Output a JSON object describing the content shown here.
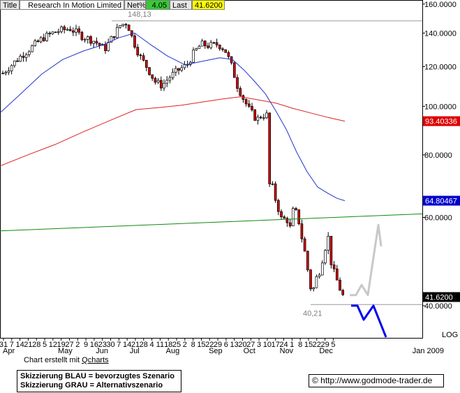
{
  "header": {
    "title_label": "Title",
    "title_value": "Research In Motion Limited",
    "netpct_label": "Net%",
    "netpct_value": "4.05",
    "last_label": "Last",
    "last_value": "41.6200"
  },
  "credit": {
    "prefix": "Chart erstellt mit ",
    "link": "Qcharts"
  },
  "legend_box": {
    "line1": "Skizzierung BLAU = bevorzugtes Szenario",
    "line2": "Skizzierung GRAU = Alternativszenario"
  },
  "copyright": "© http://www.godmode-trader.de",
  "colors": {
    "up_candle": "#ffffff",
    "down_candle": "#cc0000",
    "ma_blue": "#2233cc",
    "ma_red": "#dd2222",
    "trend_green": "#118811",
    "scenario_blue": "#0000ee",
    "scenario_gray": "#c8c8c8",
    "netpct_bg": "#33cc33",
    "last_bg": "#ffff00",
    "tag_red": "#dd0000",
    "tag_blue": "#0000cc",
    "tag_black": "#000000"
  },
  "chart_data": {
    "type": "candlestick",
    "scale": "log",
    "ylim": [
      34.5,
      163
    ],
    "y_ticks": [
      {
        "value": 160,
        "label": "160.0000"
      },
      {
        "value": 140,
        "label": "140.0000"
      },
      {
        "value": 120,
        "label": "120.0000"
      },
      {
        "value": 100,
        "label": "100.0000"
      },
      {
        "value": 80,
        "label": "80.0000"
      },
      {
        "value": 60,
        "label": "60.0000"
      },
      {
        "value": 40,
        "label": "40.0000"
      }
    ],
    "y_axis_note": "LOG",
    "x_day_ticks": [
      "31",
      "7",
      "14",
      "21",
      "28",
      "5",
      "12",
      "19",
      "27",
      "2",
      "9",
      "16",
      "23",
      "30",
      "7",
      "14",
      "21",
      "28",
      "4",
      "11",
      "18",
      "25",
      "2",
      "8",
      "15",
      "22",
      "29",
      "6",
      "13",
      "20",
      "27",
      "3",
      "10",
      "17",
      "24",
      "1",
      "8",
      "15",
      "22",
      "29",
      "5"
    ],
    "x_month_labels": [
      "Apr",
      "May",
      "Jun",
      "Jul",
      "Aug",
      "Sep",
      "Oct",
      "Nov",
      "Dec",
      "Jan 2009"
    ],
    "annotations": [
      {
        "text": "148,13",
        "value": 148.13
      },
      {
        "text": "40,21",
        "value": 40.21
      }
    ],
    "price_tags": [
      {
        "value": 93.40336,
        "label": "93.40336",
        "color": "tag_red"
      },
      {
        "value": 64.80467,
        "label": "64.80467",
        "color": "tag_blue"
      },
      {
        "value": 41.62,
        "label": "41.6200",
        "color": "tag_black"
      }
    ],
    "series": [
      {
        "name": "price",
        "anchors": [
          [
            0,
            115
          ],
          [
            14,
            120
          ],
          [
            30,
            126
          ],
          [
            45,
            131
          ],
          [
            62,
            137
          ],
          [
            80,
            141
          ],
          [
            100,
            143
          ],
          [
            118,
            138
          ],
          [
            135,
            135
          ],
          [
            150,
            130
          ],
          [
            162,
            138
          ],
          [
            172,
            145
          ],
          [
            182,
            147
          ],
          [
            190,
            136
          ],
          [
            200,
            126
          ],
          [
            210,
            120
          ],
          [
            222,
            112
          ],
          [
            232,
            110
          ],
          [
            242,
            114
          ],
          [
            255,
            118
          ],
          [
            268,
            121
          ],
          [
            278,
            128
          ],
          [
            288,
            133
          ],
          [
            300,
            132
          ],
          [
            312,
            133
          ],
          [
            322,
            130
          ],
          [
            332,
            120
          ],
          [
            340,
            110
          ],
          [
            348,
            104
          ],
          [
            356,
            99
          ],
          [
            363,
            96
          ],
          [
            368,
            94
          ],
          [
            375,
            96
          ],
          [
            382,
            96
          ],
          [
            387,
            73
          ],
          [
            392,
            67
          ],
          [
            398,
            63
          ],
          [
            404,
            59
          ],
          [
            410,
            60
          ],
          [
            416,
            57
          ],
          [
            420,
            62
          ],
          [
            426,
            61
          ],
          [
            432,
            55
          ],
          [
            438,
            50
          ],
          [
            443,
            45
          ],
          [
            447,
            42
          ],
          [
            452,
            45
          ],
          [
            458,
            47
          ],
          [
            464,
            51
          ],
          [
            470,
            55
          ],
          [
            475,
            48
          ],
          [
            480,
            46
          ],
          [
            485,
            44
          ],
          [
            490,
            42
          ],
          [
            494,
            41.6
          ]
        ]
      },
      {
        "name": "ma_blue",
        "points": [
          [
            0,
            97
          ],
          [
            30,
            106
          ],
          [
            60,
            116
          ],
          [
            90,
            124
          ],
          [
            120,
            129
          ],
          [
            150,
            133
          ],
          [
            170,
            137
          ],
          [
            193,
            140
          ],
          [
            215,
            133
          ],
          [
            240,
            126
          ],
          [
            265,
            121
          ],
          [
            290,
            123
          ],
          [
            315,
            125
          ],
          [
            333,
            124
          ],
          [
            350,
            118
          ],
          [
            365,
            112
          ],
          [
            380,
            106
          ],
          [
            395,
            98
          ],
          [
            410,
            90
          ],
          [
            425,
            81
          ],
          [
            440,
            74
          ],
          [
            455,
            69
          ],
          [
            470,
            67
          ],
          [
            483,
            65.5
          ],
          [
            494,
            64.8
          ]
        ]
      },
      {
        "name": "ma_red",
        "points": [
          [
            0,
            76
          ],
          [
            40,
            80
          ],
          [
            80,
            84
          ],
          [
            120,
            89
          ],
          [
            160,
            94
          ],
          [
            195,
            98.5
          ],
          [
            230,
            99.5
          ],
          [
            260,
            100.5
          ],
          [
            290,
            102
          ],
          [
            320,
            103.5
          ],
          [
            345,
            104.5
          ],
          [
            370,
            103
          ],
          [
            395,
            101.5
          ],
          [
            420,
            99
          ],
          [
            445,
            97
          ],
          [
            470,
            95
          ],
          [
            494,
            93.4
          ]
        ]
      },
      {
        "name": "trend_green",
        "points": [
          [
            0,
            56.4
          ],
          [
            605,
            61
          ]
        ]
      },
      {
        "name": "scenario_blue",
        "points": [
          [
            503,
            40
          ],
          [
            512,
            40
          ],
          [
            521,
            37.5
          ],
          [
            535,
            40
          ],
          [
            553,
            34.6
          ]
        ]
      },
      {
        "name": "scenario_gray",
        "points": [
          [
            501,
            42
          ],
          [
            510,
            42
          ],
          [
            518,
            44
          ],
          [
            527,
            42
          ],
          [
            542,
            58
          ],
          [
            546,
            52.5
          ]
        ]
      }
    ],
    "reference_levels": [
      {
        "value": 148.13,
        "x_from": 160,
        "x_to": 605,
        "color": "#999999"
      },
      {
        "value": 40.21,
        "x_from": 445,
        "x_to": 605,
        "color": "#999999"
      }
    ]
  }
}
